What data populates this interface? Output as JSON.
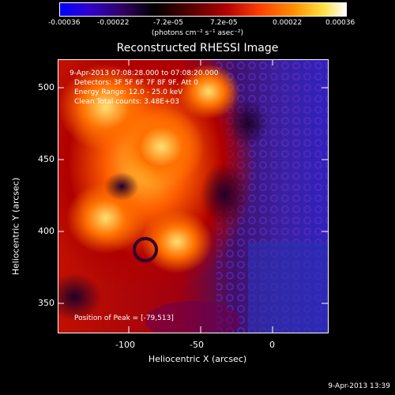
{
  "colorbar": {
    "tick_labels": [
      "-0.00036",
      "-0.00022",
      "-7.2e-05",
      "7.2e-05",
      "0.00022",
      "0.00036"
    ],
    "units_label": "(photons cm⁻² s⁻¹ asec⁻²)",
    "colors": [
      "#0000ff",
      "#4000c0",
      "#200040",
      "#000000",
      "#6a0000",
      "#c80000",
      "#ff5000",
      "#ffa000",
      "#ffe060",
      "#ffffff"
    ]
  },
  "title": "Reconstructed RHESSI Image",
  "info": {
    "time_range": "9-Apr-2013 07:08:28.000 to 07:08:20.000",
    "detectors": "Detectors: 3F 5F 6F 7F 8F 9F, Att 0",
    "energy": "Energy Range: 12.0 - 25.0 keV",
    "clean": "Clean     Total counts: 3.48E+03",
    "peak": "Position of Peak = [-79,513]"
  },
  "axes": {
    "x_label": "Heliocentric X (arcsec)",
    "y_label": "Heliocentric Y (arcsec)",
    "x_ticks": [
      "-100",
      "-50",
      "0"
    ],
    "y_ticks": [
      "500",
      "450",
      "400",
      "350"
    ]
  },
  "timestamp": "9-Apr-2013 13:39"
}
